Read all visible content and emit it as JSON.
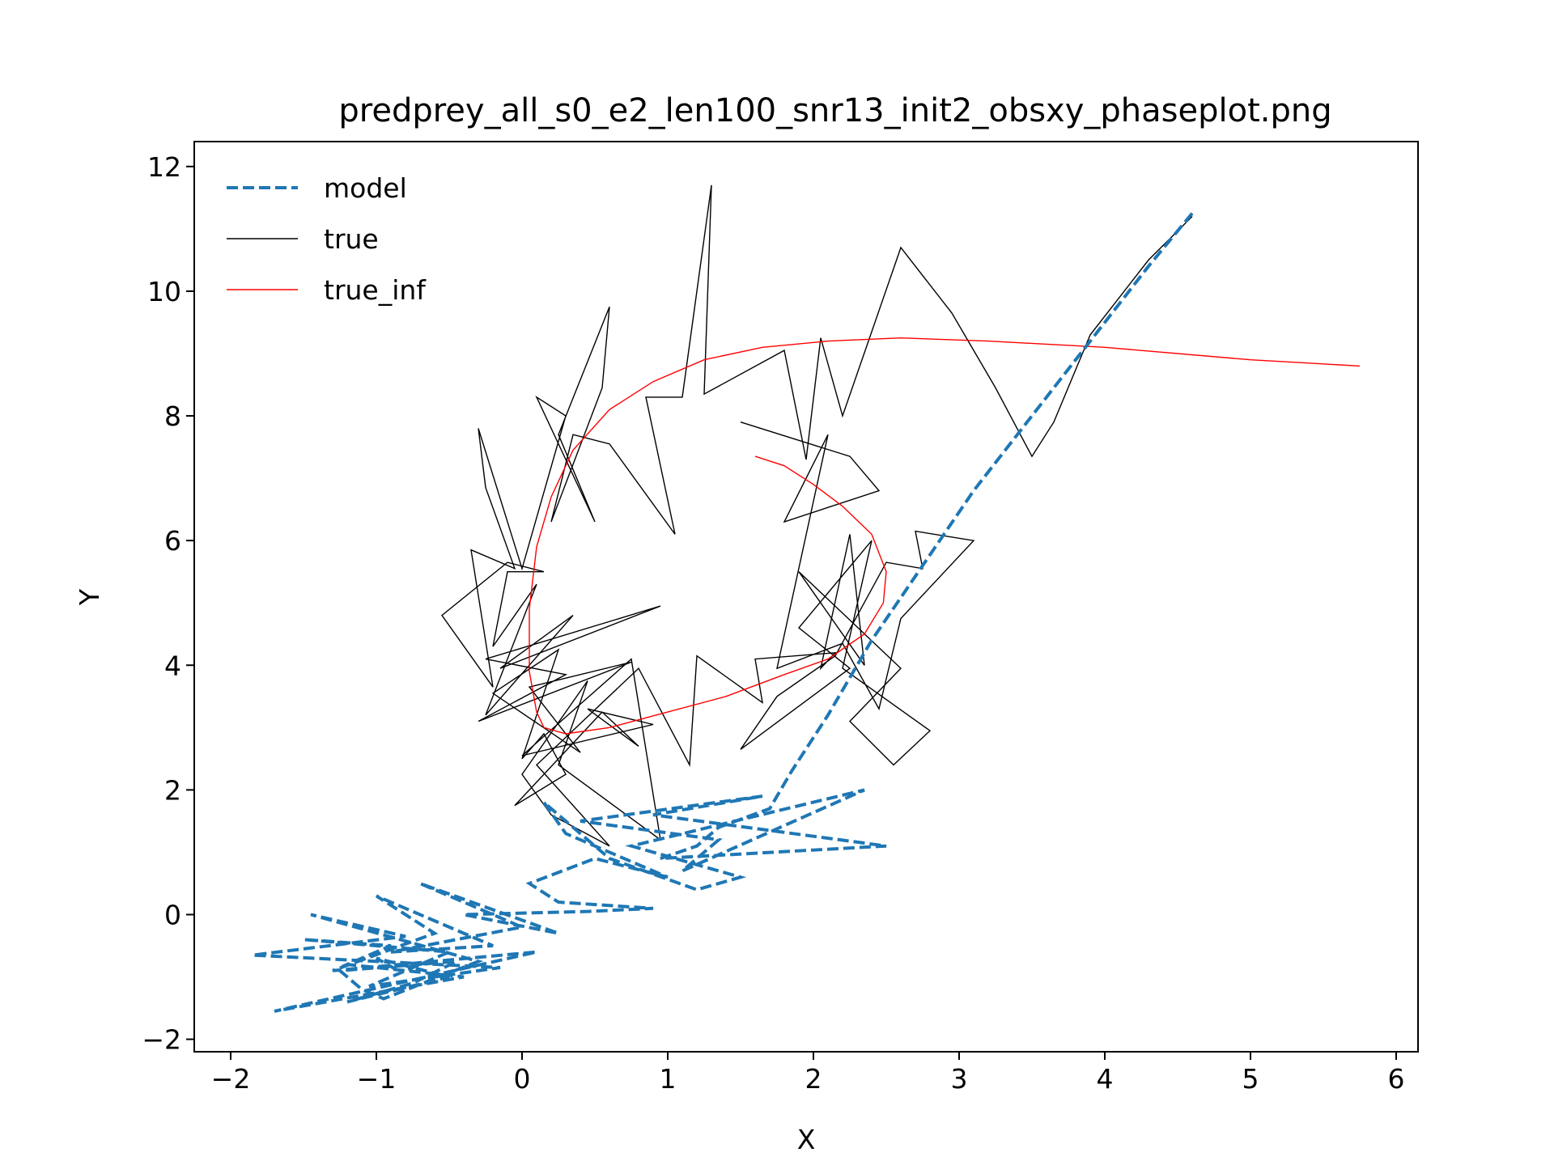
{
  "chart_data": {
    "type": "line",
    "title": "predprey_all_s0_e2_len100_snr13_init2_obsxy_phaseplot.png",
    "xlabel": "X",
    "ylabel": "Y",
    "xlim": [
      -2.25,
      6.15
    ],
    "ylim": [
      -2.2,
      12.4
    ],
    "xticks": [
      -2,
      -1,
      0,
      1,
      2,
      3,
      4,
      5,
      6
    ],
    "xtick_labels": [
      "−2",
      "−1",
      "0",
      "1",
      "2",
      "3",
      "4",
      "5",
      "6"
    ],
    "yticks": [
      -2,
      0,
      2,
      4,
      6,
      8,
      10,
      12
    ],
    "ytick_labels": [
      "−2",
      "0",
      "2",
      "4",
      "6",
      "8",
      "10",
      "12"
    ],
    "legend_position": "upper-left",
    "series": [
      {
        "name": "model",
        "color": "#1f77b4",
        "style": "dashed",
        "x": [
          4.6,
          4.3,
          3.9,
          3.5,
          3.1,
          2.75,
          2.4,
          2.1,
          1.85,
          1.7,
          1.35,
          1.2,
          0.95,
          2.5,
          0.9,
          1.65,
          0.4,
          1.35,
          1.1,
          2.35,
          0.75,
          1.5,
          1.2,
          0.6,
          0.15,
          0.3,
          1.0,
          0.5,
          0.05,
          0.25,
          0.9,
          0.45,
          -0.4,
          0.25,
          -0.7,
          0.0,
          -0.9,
          -0.2,
          -1.0,
          -0.6,
          -1.3,
          0.1,
          -1.7,
          -0.4,
          -1.2,
          -0.9,
          -1.5,
          -0.5,
          -1.05,
          -0.15,
          -1.85,
          -0.8,
          -1.45,
          -0.3,
          -0.95,
          -1.1,
          -1.25,
          -0.45,
          -0.75,
          -1.2,
          -0.5,
          -1.0,
          -0.85
        ],
        "y": [
          11.25,
          10.4,
          9.2,
          8.0,
          6.8,
          5.6,
          4.4,
          3.2,
          2.3,
          1.7,
          1.4,
          1.1,
          0.9,
          1.1,
          1.6,
          1.9,
          1.5,
          1.2,
          0.7,
          2.0,
          1.1,
          0.6,
          0.4,
          0.9,
          1.8,
          1.3,
          0.6,
          0.9,
          0.5,
          0.2,
          0.1,
          0.05,
          0.0,
          -0.3,
          0.5,
          -0.2,
          -0.6,
          -0.5,
          0.3,
          -0.3,
          -0.9,
          -0.6,
          -1.55,
          -1.0,
          -0.8,
          -0.5,
          -0.4,
          -0.6,
          -1.15,
          -0.85,
          -0.65,
          -0.35,
          0.0,
          -0.75,
          -1.35,
          -1.2,
          -0.9,
          -0.75,
          -1.1,
          -1.4,
          -1.0,
          -0.7,
          -0.9
        ]
      },
      {
        "name": "true",
        "color": "#000000",
        "style": "solid",
        "x": [
          4.6,
          4.3,
          3.9,
          3.65,
          3.5,
          3.25,
          2.95,
          2.6,
          2.4,
          2.2,
          2.05,
          1.95,
          1.8,
          1.25,
          1.3,
          1.1,
          0.85,
          1.05,
          0.6,
          0.35,
          0.2,
          0.55,
          0.6,
          0.25,
          0.5,
          0.1,
          0.3,
          0.0,
          -0.3,
          -0.25,
          -0.05,
          -0.35,
          -0.2,
          -0.55,
          -0.1,
          0.15,
          -0.1,
          -0.2,
          0.1,
          -0.25,
          0.35,
          -0.15,
          0.95,
          -0.25,
          0.3,
          -0.3,
          0.75,
          0.05,
          0.4,
          -0.2,
          0.25,
          0.0,
          0.15,
          0.3,
          -0.05,
          0.55,
          0.8,
          0.45,
          0.9,
          0.0,
          0.75,
          0.95,
          0.25,
          0.45,
          0.0,
          0.2,
          0.6,
          0.1,
          0.8,
          1.15,
          1.2,
          1.65,
          1.6,
          2.15,
          2.05,
          2.25,
          2.35,
          1.9,
          2.6,
          2.25,
          2.55,
          2.8,
          2.2,
          2.4,
          1.9,
          2.25,
          1.5,
          1.75,
          2.15,
          2.5,
          2.75,
          2.7,
          3.1,
          2.7,
          2.6,
          2.45,
          2.2,
          1.75,
          2.1,
          1.8,
          2.45,
          2.25,
          1.5
        ],
        "y": [
          11.2,
          10.5,
          9.3,
          7.9,
          7.35,
          8.45,
          9.65,
          10.7,
          9.35,
          8.0,
          9.25,
          7.3,
          9.05,
          8.35,
          11.7,
          8.3,
          8.3,
          6.1,
          7.55,
          7.7,
          6.3,
          8.45,
          9.75,
          7.7,
          6.3,
          8.3,
          8.0,
          5.55,
          7.8,
          6.85,
          5.55,
          5.85,
          3.65,
          4.8,
          5.65,
          5.5,
          5.5,
          4.3,
          5.3,
          3.2,
          4.8,
          3.95,
          4.95,
          4.1,
          3.85,
          3.1,
          4.05,
          3.65,
          2.6,
          3.55,
          4.25,
          2.5,
          2.9,
          2.25,
          1.75,
          3.25,
          2.7,
          3.3,
          3.05,
          2.55,
          4.1,
          1.2,
          2.4,
          3.75,
          2.25,
          1.6,
          1.1,
          2.4,
          3.95,
          2.4,
          4.15,
          3.4,
          4.1,
          4.2,
          3.95,
          6.1,
          4.0,
          5.5,
          3.95,
          3.1,
          2.4,
          2.95,
          3.95,
          6.0,
          4.6,
          3.95,
          2.65,
          3.5,
          4.15,
          5.65,
          5.55,
          6.15,
          6.0,
          5.0,
          4.75,
          3.3,
          4.35,
          3.95,
          7.7,
          6.3,
          6.8,
          7.35,
          7.9
        ]
      },
      {
        "name": "true_inf",
        "color": "#ff0000",
        "style": "solid",
        "x": [
          5.75,
          5.0,
          4.0,
          3.2,
          2.6,
          2.1,
          1.65,
          1.25,
          0.9,
          0.6,
          0.35,
          0.2,
          0.1,
          0.05,
          0.05,
          0.1,
          0.15,
          0.3,
          0.6,
          1.0,
          1.4,
          1.8,
          2.1,
          2.35,
          2.48,
          2.5,
          2.4,
          2.2,
          2.0,
          1.8,
          1.6
        ],
        "y": [
          8.8,
          8.9,
          9.1,
          9.2,
          9.25,
          9.2,
          9.1,
          8.9,
          8.55,
          8.1,
          7.45,
          6.7,
          5.9,
          4.9,
          3.9,
          3.25,
          3.0,
          2.9,
          3.0,
          3.25,
          3.5,
          3.85,
          4.1,
          4.5,
          5.0,
          5.5,
          6.1,
          6.55,
          6.9,
          7.2,
          7.35
        ]
      }
    ]
  }
}
